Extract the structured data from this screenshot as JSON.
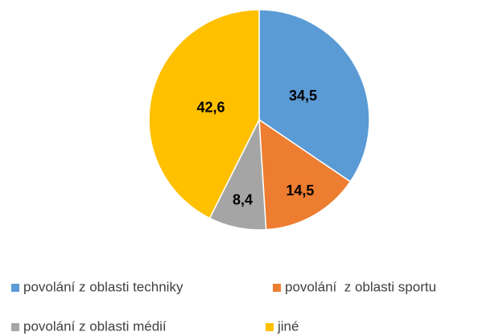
{
  "chart_data": {
    "type": "pie",
    "categories": [
      "povolání z oblasti techniky",
      "povolání  z oblasti sportu",
      "povolání z oblasti médií",
      "jiné"
    ],
    "values": [
      34.5,
      14.5,
      8.4,
      42.6
    ],
    "value_labels": [
      "34,5",
      "14,5",
      "8,4",
      "42,6"
    ],
    "colors": [
      "#5b9bd5",
      "#ed7d31",
      "#a5a5a5",
      "#ffc000"
    ],
    "legend": "bottom"
  }
}
